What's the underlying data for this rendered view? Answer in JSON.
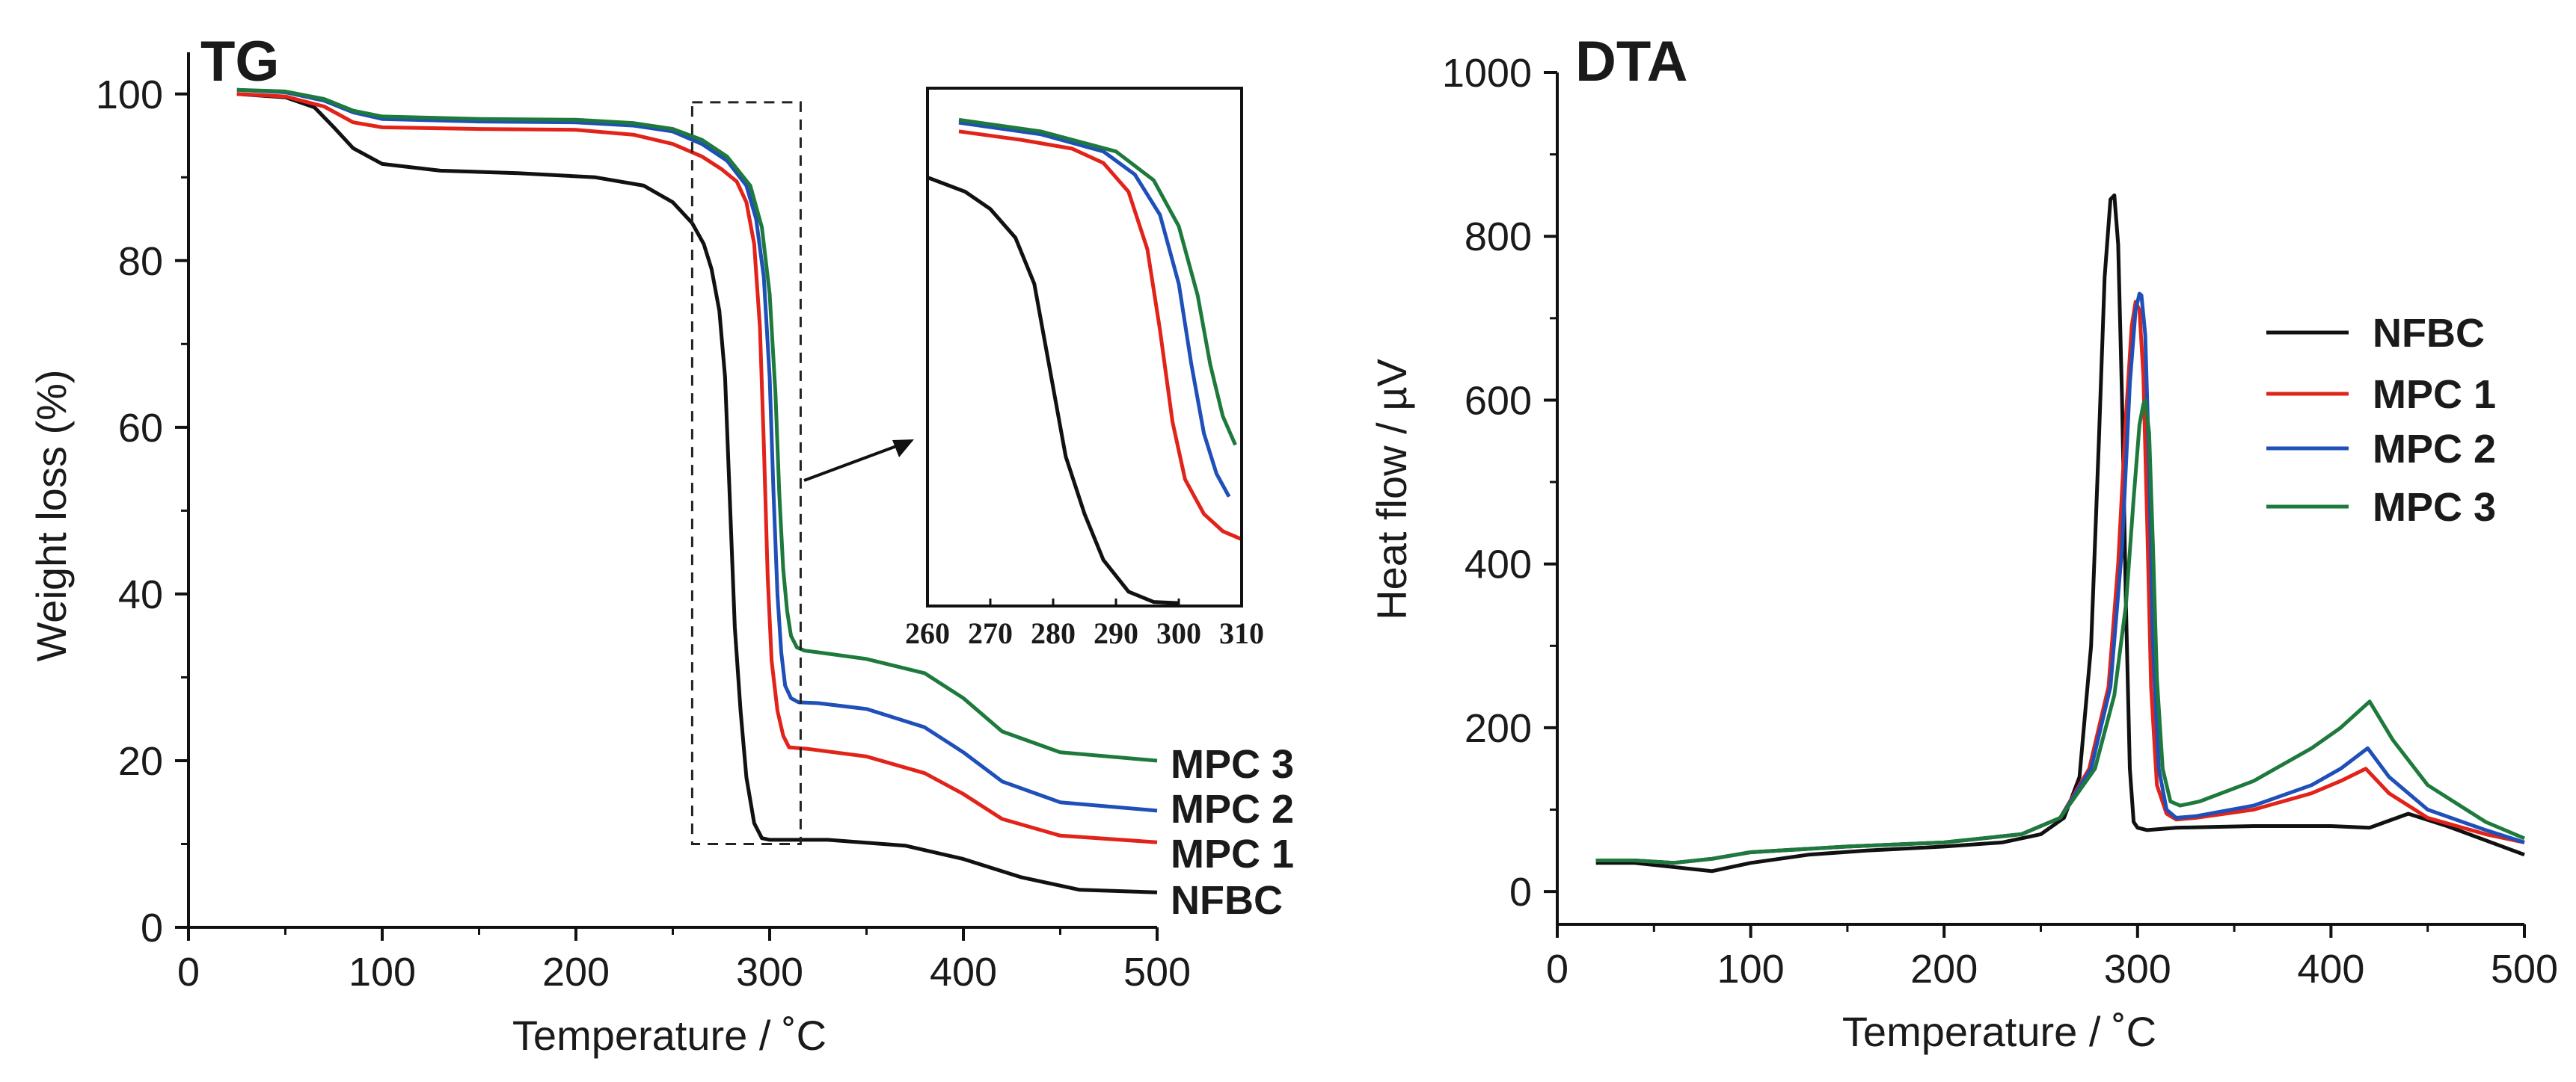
{
  "chart_data": [
    {
      "type": "line",
      "title": "TG",
      "xlabel": "Temperature / ˚C",
      "ylabel": "Weight loss (%)",
      "xlim": [
        0,
        500
      ],
      "ylim": [
        0,
        105
      ],
      "xticks": [
        "0",
        "100",
        "200",
        "300",
        "400",
        "500"
      ],
      "yticks": [
        "0",
        "20",
        "40",
        "60",
        "80",
        "100"
      ],
      "grid": false,
      "series": [
        {
          "name": "NFBC",
          "color": "#111111",
          "x": [
            25,
            50,
            65,
            75,
            85,
            100,
            130,
            170,
            210,
            235,
            250,
            260,
            266,
            270,
            274,
            277,
            280,
            282,
            285,
            288,
            292,
            296,
            300,
            330,
            370,
            400,
            430,
            460,
            500
          ],
          "y": [
            100,
            99.6,
            98.4,
            96,
            93.5,
            91.6,
            90.8,
            90.5,
            90.0,
            89.0,
            87.0,
            84.5,
            82,
            79,
            74,
            66,
            48,
            36,
            26,
            18,
            12.5,
            10.7,
            10.5,
            10.5,
            9.8,
            8.2,
            6.0,
            4.5,
            4.2
          ]
        },
        {
          "name": "MPC 1",
          "color": "#e2231a",
          "x": [
            25,
            50,
            70,
            85,
            100,
            150,
            200,
            230,
            250,
            265,
            275,
            283,
            288,
            292,
            295,
            297,
            299,
            301,
            304,
            307,
            310,
            320,
            350,
            380,
            400,
            420,
            450,
            500
          ],
          "y": [
            100,
            99.7,
            98.5,
            96.6,
            96.0,
            95.8,
            95.7,
            95.1,
            94.0,
            92.5,
            91.0,
            89.5,
            87,
            82,
            72,
            58,
            42,
            32,
            26,
            23,
            21.6,
            21.4,
            20.5,
            18.5,
            16.0,
            13.0,
            11.0,
            10.2
          ]
        },
        {
          "name": "MPC 2",
          "color": "#1f4fb8",
          "x": [
            25,
            50,
            70,
            85,
            100,
            150,
            200,
            230,
            250,
            265,
            278,
            288,
            293,
            297,
            300,
            302,
            304,
            306,
            308,
            311,
            315,
            325,
            350,
            380,
            400,
            420,
            450,
            500
          ],
          "y": [
            100.5,
            100.2,
            99.2,
            97.8,
            97.0,
            96.7,
            96.6,
            96.2,
            95.5,
            94.0,
            92.0,
            89.0,
            85,
            78,
            66,
            52,
            40,
            33,
            29,
            27.5,
            27.0,
            26.9,
            26.2,
            24.0,
            21.0,
            17.5,
            15.0,
            14.0
          ]
        },
        {
          "name": "MPC 3",
          "color": "#1e7a3c",
          "x": [
            25,
            50,
            70,
            85,
            100,
            150,
            200,
            230,
            250,
            265,
            278,
            290,
            296,
            300,
            303,
            305,
            307,
            309,
            311,
            314,
            318,
            325,
            350,
            380,
            400,
            420,
            450,
            500
          ],
          "y": [
            100.5,
            100.3,
            99.4,
            98.0,
            97.3,
            97.0,
            96.9,
            96.5,
            95.8,
            94.5,
            92.5,
            89.0,
            84,
            76,
            64,
            52,
            43,
            38,
            35,
            33.6,
            33.2,
            33.0,
            32.2,
            30.5,
            27.5,
            23.5,
            21.0,
            20.0
          ]
        }
      ],
      "end_labels": [
        "MPC 3",
        "MPC 2",
        "MPC 1",
        "NFBC"
      ],
      "zoom_box": {
        "x": [
          260,
          316
        ],
        "y": [
          10,
          99
        ]
      },
      "inset": {
        "xlim": [
          260,
          310
        ],
        "ylim": [
          10,
          100
        ],
        "xticks": [
          "260",
          "270",
          "280",
          "290",
          "300",
          "310"
        ]
      }
    },
    {
      "type": "line",
      "title": "DTA",
      "xlabel": "Temperature / ˚C",
      "ylabel": "Heat flow / µV",
      "xlim": [
        0,
        500
      ],
      "ylim": [
        -40,
        1000
      ],
      "xticks": [
        "0",
        "100",
        "200",
        "300",
        "400",
        "500"
      ],
      "yticks": [
        "0",
        "200",
        "400",
        "600",
        "800",
        "1000"
      ],
      "grid": false,
      "legend": "right",
      "series": [
        {
          "name": "NFBC",
          "color": "#111111",
          "x": [
            20,
            40,
            60,
            80,
            100,
            130,
            160,
            200,
            230,
            250,
            262,
            270,
            276,
            280,
            283,
            286,
            288,
            290,
            292,
            294,
            296,
            298,
            300,
            305,
            320,
            360,
            400,
            420,
            440,
            460,
            500
          ],
          "y": [
            35,
            35,
            30,
            25,
            35,
            45,
            50,
            55,
            60,
            70,
            90,
            140,
            300,
            550,
            750,
            845,
            850,
            790,
            600,
            350,
            150,
            85,
            78,
            75,
            78,
            80,
            80,
            78,
            95,
            80,
            45
          ]
        },
        {
          "name": "MPC 1",
          "color": "#e2231a",
          "x": [
            20,
            40,
            60,
            80,
            100,
            150,
            200,
            240,
            260,
            275,
            285,
            290,
            294,
            297,
            299,
            301,
            303,
            305,
            307,
            310,
            315,
            320,
            330,
            360,
            390,
            405,
            418,
            430,
            450,
            480,
            500
          ],
          "y": [
            38,
            38,
            35,
            40,
            48,
            55,
            60,
            70,
            90,
            150,
            250,
            400,
            580,
            690,
            720,
            710,
            630,
            450,
            250,
            130,
            95,
            88,
            90,
            100,
            120,
            135,
            150,
            120,
            90,
            70,
            60
          ]
        },
        {
          "name": "MPC 2",
          "color": "#1f4fb8",
          "x": [
            20,
            40,
            60,
            80,
            100,
            150,
            200,
            240,
            260,
            276,
            286,
            292,
            296,
            299,
            301,
            302,
            304,
            306,
            308,
            311,
            315,
            320,
            330,
            360,
            390,
            405,
            419,
            430,
            450,
            480,
            500
          ],
          "y": [
            38,
            38,
            35,
            40,
            48,
            55,
            60,
            70,
            90,
            150,
            250,
            420,
            620,
            710,
            730,
            728,
            680,
            520,
            300,
            150,
            100,
            90,
            92,
            105,
            130,
            150,
            175,
            140,
            100,
            75,
            60
          ]
        },
        {
          "name": "MPC 3",
          "color": "#1e7a3c",
          "x": [
            20,
            40,
            60,
            80,
            100,
            150,
            200,
            240,
            260,
            278,
            288,
            294,
            298,
            301,
            303,
            304,
            306,
            308,
            310,
            313,
            317,
            322,
            332,
            360,
            390,
            405,
            420,
            432,
            450,
            480,
            500
          ],
          "y": [
            38,
            38,
            35,
            40,
            48,
            55,
            60,
            70,
            90,
            150,
            240,
            350,
            480,
            570,
            595,
            600,
            560,
            420,
            260,
            150,
            110,
            105,
            110,
            135,
            175,
            200,
            232,
            185,
            130,
            85,
            65
          ]
        }
      ]
    }
  ]
}
